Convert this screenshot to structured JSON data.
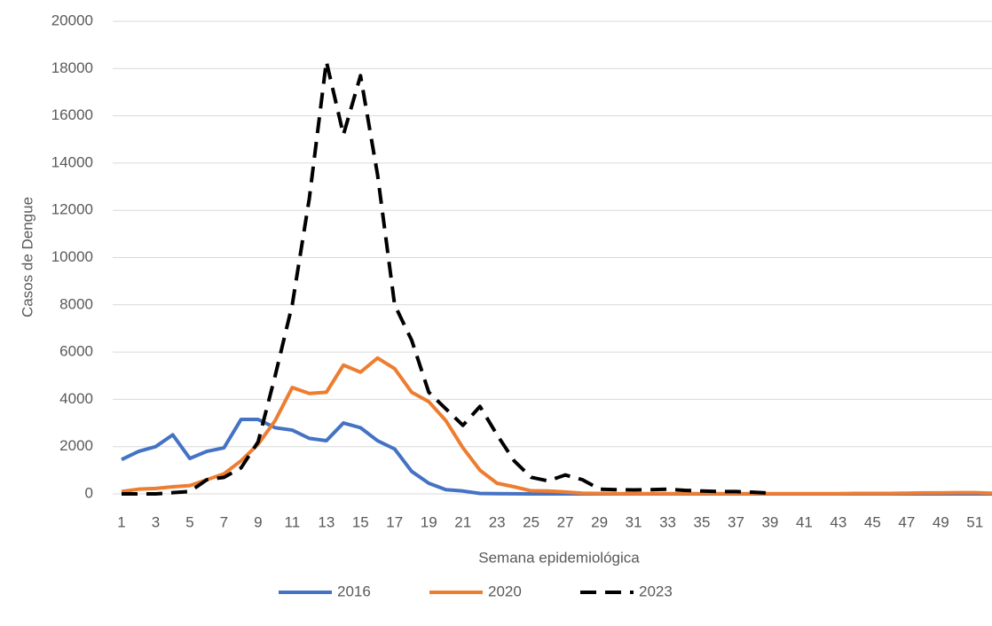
{
  "chart_data": {
    "type": "line",
    "x_label": "Semana epidemiológica",
    "y_label": "Casos de Dengue",
    "categories": [
      1,
      null,
      3,
      null,
      5,
      null,
      7,
      null,
      9,
      null,
      11,
      null,
      13,
      null,
      15,
      null,
      17,
      null,
      19,
      null,
      21,
      null,
      23,
      null,
      25,
      null,
      27,
      null,
      29,
      null,
      31,
      null,
      33,
      null,
      35,
      null,
      37,
      null,
      39,
      null,
      41,
      null,
      43,
      null,
      45,
      null,
      47,
      null,
      49,
      null,
      51,
      null
    ],
    "ylim": [
      0,
      20000
    ],
    "yticks": [
      0,
      2000,
      4000,
      6000,
      8000,
      10000,
      12000,
      14000,
      16000,
      18000,
      20000
    ],
    "grid": true,
    "legend": "bottom",
    "series": [
      {
        "name": "2016",
        "color": "#4472c4",
        "dash": false,
        "values": [
          1450,
          1800,
          2000,
          2500,
          1500,
          1800,
          1950,
          3150,
          3150,
          2800,
          2700,
          2350,
          2250,
          3000,
          2800,
          2250,
          1900,
          950,
          450,
          180,
          120,
          20,
          10,
          5,
          0,
          0,
          0,
          0,
          0,
          0,
          0,
          0,
          0,
          0,
          0,
          0,
          0,
          0,
          0,
          0,
          0,
          0,
          0,
          0,
          0,
          0,
          0,
          0,
          0,
          0,
          0,
          0
        ]
      },
      {
        "name": "2020",
        "color": "#ed7d31",
        "dash": false,
        "values": [
          100,
          200,
          230,
          300,
          350,
          600,
          850,
          1400,
          2100,
          3100,
          4500,
          4250,
          4300,
          5450,
          5150,
          5750,
          5300,
          4300,
          3900,
          3100,
          1950,
          1000,
          450,
          300,
          130,
          120,
          80,
          30,
          20,
          10,
          10,
          10,
          10,
          10,
          10,
          10,
          10,
          10,
          10,
          10,
          10,
          10,
          10,
          20,
          20,
          20,
          30,
          40,
          40,
          50,
          50,
          30
        ]
      },
      {
        "name": "2023",
        "color": "#000000",
        "dash": true,
        "values": [
          0,
          0,
          0,
          50,
          100,
          600,
          700,
          1100,
          2200,
          5000,
          8000,
          12500,
          18300,
          15200,
          17700,
          13500,
          8000,
          6500,
          4300,
          3600,
          2900,
          3700,
          2500,
          1400,
          700,
          550,
          800,
          600,
          200,
          180,
          170,
          180,
          200,
          150,
          120,
          100,
          100,
          70,
          30,
          null,
          null,
          null,
          null,
          null,
          null,
          null,
          null,
          null,
          null,
          null,
          null,
          null
        ]
      }
    ]
  }
}
